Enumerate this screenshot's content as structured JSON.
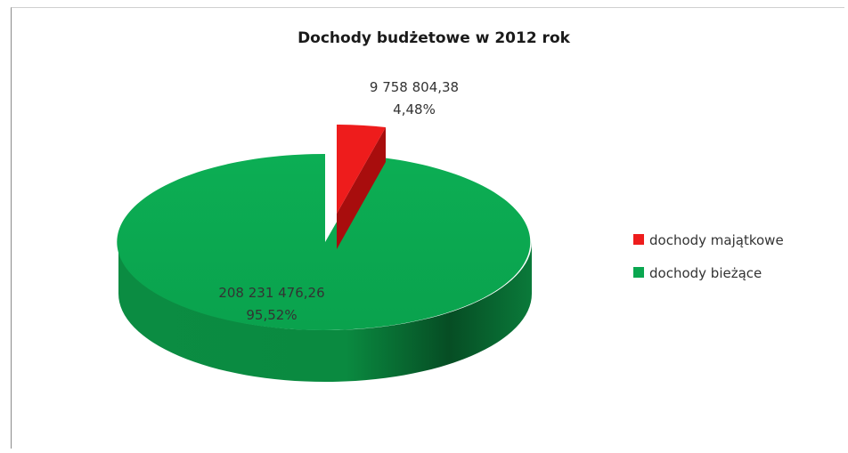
{
  "chart_data": {
    "type": "pie",
    "title": "Dochody budżetowe w 2012 rok",
    "slices": [
      {
        "name": "dochody majątkowe",
        "value": 9758804.38,
        "value_label": "9 758 804,38",
        "percent_label": "4,48%",
        "percent": 4.48,
        "color": "#ee1c1c",
        "exploded": true
      },
      {
        "name": "dochody bieżące",
        "value": 208231476.26,
        "value_label": "208 231 476,26",
        "percent_label": "95,52%",
        "percent": 95.52,
        "color": "#0aa750",
        "exploded": false
      }
    ],
    "legend_position": "right",
    "style": "3d"
  }
}
